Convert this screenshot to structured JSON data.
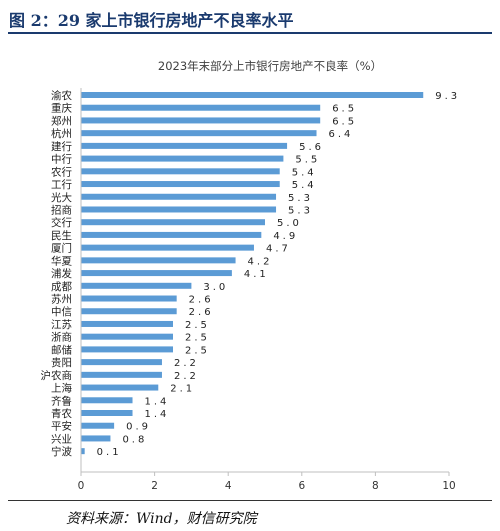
{
  "figure_title": "图 2：29 家上市银行房地产不良率水平",
  "source": "资料来源：Wind，财信研究院",
  "colors": {
    "bar": "#5b9bd5",
    "title": "#1a3a6e",
    "axis": "#bfbfbf"
  },
  "chart_data": {
    "type": "bar",
    "orientation": "horizontal",
    "title": "2023年末部分上市银行房地产不良率（%）",
    "categories": [
      "渝农",
      "重庆",
      "郑州",
      "杭州",
      "建行",
      "中行",
      "农行",
      "工行",
      "光大",
      "招商",
      "交行",
      "民生",
      "厦门",
      "华夏",
      "浦发",
      "成都",
      "苏州",
      "中信",
      "江苏",
      "浙商",
      "邮储",
      "贵阳",
      "沪农商",
      "上海",
      "齐鲁",
      "青农",
      "平安",
      "兴业",
      "宁波"
    ],
    "values": [
      9.3,
      6.5,
      6.5,
      6.4,
      5.6,
      5.5,
      5.4,
      5.4,
      5.3,
      5.3,
      5.0,
      4.9,
      4.7,
      4.2,
      4.1,
      3.0,
      2.6,
      2.6,
      2.5,
      2.5,
      2.5,
      2.2,
      2.2,
      2.1,
      1.4,
      1.4,
      0.9,
      0.8,
      0.1
    ],
    "data_labels": [
      "9.3",
      "6.5",
      "6.5",
      "6.4",
      "5.6",
      "5.5",
      "5.4",
      "5.4",
      "5.3",
      "5.3",
      "5.0",
      "4.9",
      "4.7",
      "4.2",
      "4.1",
      "3.0",
      "2.6",
      "2.6",
      "2.5",
      "2.5",
      "2.5",
      "2.2",
      "2.2",
      "2.1",
      "1.4",
      "1.4",
      "0.9",
      "0.8",
      "0.1"
    ],
    "xlim": [
      0,
      10
    ],
    "xticks": [
      "0",
      "2",
      "4",
      "6",
      "8",
      "10"
    ],
    "grid": false,
    "legend": "none"
  }
}
